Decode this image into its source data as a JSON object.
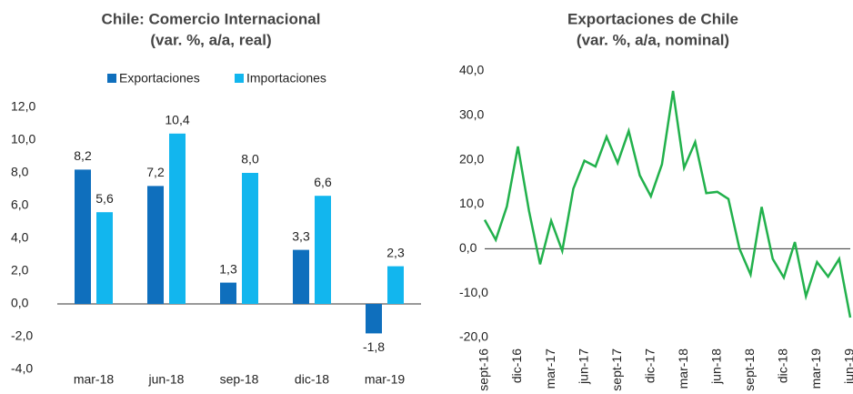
{
  "chart_data": [
    {
      "type": "bar",
      "title": "Chile: Comercio Internacional",
      "subtitle": "(var. %, a/a, real)",
      "categories": [
        "mar-18",
        "jun-18",
        "sep-18",
        "dic-18",
        "mar-19"
      ],
      "series": [
        {
          "name": "Exportaciones",
          "color": "#0f6fbd",
          "values": [
            8.2,
            7.2,
            1.3,
            3.3,
            -1.8
          ],
          "value_labels": [
            "8,2",
            "7,2",
            "1,3",
            "3,3",
            "-1,8"
          ]
        },
        {
          "name": "Importaciones",
          "color": "#12b6ee",
          "values": [
            5.6,
            10.4,
            8.0,
            6.6,
            2.3
          ],
          "value_labels": [
            "5,6",
            "10,4",
            "8,0",
            "6,6",
            "2,3"
          ]
        }
      ],
      "ylim": [
        -4,
        12
      ],
      "yticks": [
        {
          "value": 12,
          "label": "12,0"
        },
        {
          "value": 10,
          "label": "10,0"
        },
        {
          "value": 8,
          "label": "8,0"
        },
        {
          "value": 6,
          "label": "6,0"
        },
        {
          "value": 4,
          "label": "4,0"
        },
        {
          "value": 2,
          "label": "2,0"
        },
        {
          "value": 0,
          "label": "0,0"
        },
        {
          "value": -2,
          "label": "-2,0"
        },
        {
          "value": -4,
          "label": "-4,0"
        }
      ],
      "legend": "top"
    },
    {
      "type": "line",
      "title": "Exportaciones de Chile",
      "subtitle": "(var. %, a/a, nominal)",
      "categories": [
        "sept-16",
        null,
        null,
        "dic-16",
        null,
        null,
        "mar-17",
        null,
        null,
        "jun-17",
        null,
        null,
        "sept-17",
        null,
        null,
        "dic-17",
        null,
        null,
        "mar-18",
        null,
        null,
        "jun-18",
        null,
        null,
        "sept-18",
        null,
        null,
        "dic-18",
        null,
        null,
        "mar-19",
        null,
        null,
        "jun-19"
      ],
      "series": [
        {
          "name": "Exportaciones",
          "color": "#22b14c",
          "values": [
            6.5,
            2,
            9.5,
            23,
            8.5,
            -3.5,
            6.3,
            -0.5,
            13.5,
            19.8,
            18.5,
            25.2,
            19.3,
            26.5,
            16.5,
            11.8,
            19,
            35.5,
            18.2,
            24,
            12.5,
            12.8,
            11.2,
            0,
            -5.8,
            9.4,
            -2.3,
            -6.5,
            1.5,
            -10.7,
            -3,
            -6.3,
            -2.3,
            -15.5
          ]
        }
      ],
      "ylim": [
        -20,
        40
      ],
      "yticks": [
        {
          "value": 40,
          "label": "40,0"
        },
        {
          "value": 30,
          "label": "30,0"
        },
        {
          "value": 20,
          "label": "20,0"
        },
        {
          "value": 10,
          "label": "10,0"
        },
        {
          "value": 0,
          "label": "0,0"
        },
        {
          "value": -10,
          "label": "-10,0"
        },
        {
          "value": -20,
          "label": "-20,0"
        }
      ]
    }
  ]
}
